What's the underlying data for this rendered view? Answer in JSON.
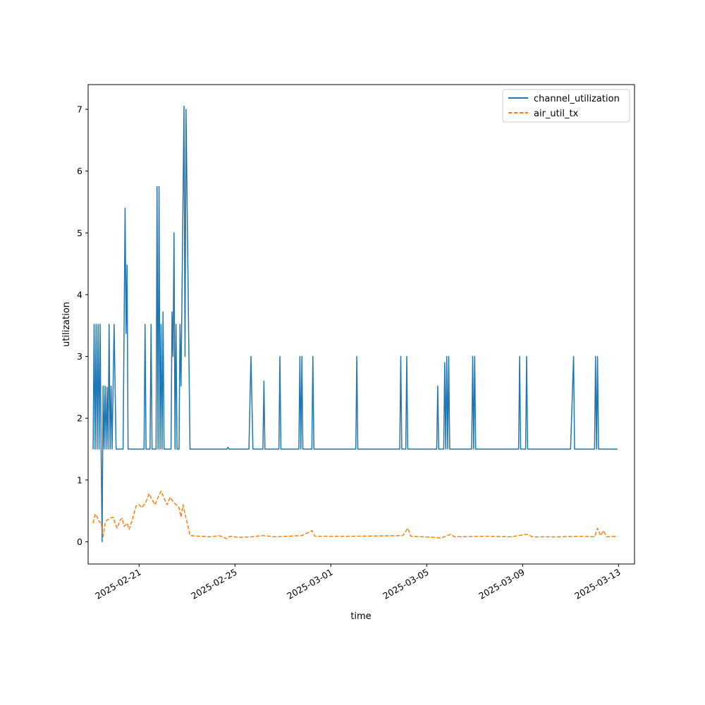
{
  "chart_data": {
    "type": "line",
    "xlabel": "time",
    "ylabel": "utilization",
    "xlim": [
      "2025-02-18T21:00",
      "2025-03-13T16:00"
    ],
    "ylim": [
      -0.36,
      7.4
    ],
    "x_ticks": [
      "2025-02-21",
      "2025-02-25",
      "2025-03-01",
      "2025-03-05",
      "2025-03-09",
      "2025-03-13"
    ],
    "y_ticks": [
      0,
      1,
      2,
      3,
      4,
      5,
      6,
      7
    ],
    "legend": {
      "position": "top-right"
    },
    "series": [
      {
        "name": "channel_utilization",
        "color": "#1f77b4",
        "style": "solid",
        "points": [
          [
            "2025-02-19T02:00",
            1.5
          ],
          [
            "2025-02-19T03:00",
            3.52
          ],
          [
            "2025-02-19T04:00",
            1.5
          ],
          [
            "2025-02-19T05:00",
            3.52
          ],
          [
            "2025-02-19T06:00",
            1.5
          ],
          [
            "2025-02-19T07:00",
            3.52
          ],
          [
            "2025-02-19T08:00",
            1.5
          ],
          [
            "2025-02-19T09:00",
            3.52
          ],
          [
            "2025-02-19T10:00",
            1.5
          ],
          [
            "2025-02-19T11:00",
            0.0
          ],
          [
            "2025-02-19T12:00",
            2.52
          ],
          [
            "2025-02-19T13:00",
            1.5
          ],
          [
            "2025-02-19T14:00",
            2.52
          ],
          [
            "2025-02-19T15:00",
            1.5
          ],
          [
            "2025-02-19T16:00",
            2.5
          ],
          [
            "2025-02-19T17:00",
            1.5
          ],
          [
            "2025-02-19T18:00",
            3.52
          ],
          [
            "2025-02-19T19:00",
            1.5
          ],
          [
            "2025-02-19T20:00",
            2.52
          ],
          [
            "2025-02-19T21:00",
            1.5
          ],
          [
            "2025-02-19T23:00",
            3.52
          ],
          [
            "2025-02-20T01:00",
            1.5
          ],
          [
            "2025-02-20T08:00",
            1.5
          ],
          [
            "2025-02-20T10:00",
            5.4
          ],
          [
            "2025-02-20T11:00",
            3.37
          ],
          [
            "2025-02-20T12:00",
            4.48
          ],
          [
            "2025-02-20T13:00",
            1.5
          ],
          [
            "2025-02-21T05:00",
            1.5
          ],
          [
            "2025-02-21T06:00",
            3.52
          ],
          [
            "2025-02-21T07:00",
            1.5
          ],
          [
            "2025-02-21T11:00",
            1.5
          ],
          [
            "2025-02-21T12:00",
            3.52
          ],
          [
            "2025-02-21T13:00",
            1.5
          ],
          [
            "2025-02-21T17:00",
            1.5
          ],
          [
            "2025-02-21T18:00",
            5.75
          ],
          [
            "2025-02-21T19:00",
            1.5
          ],
          [
            "2025-02-21T20:00",
            5.75
          ],
          [
            "2025-02-21T21:00",
            1.5
          ],
          [
            "2025-02-21T22:00",
            3.52
          ],
          [
            "2025-02-21T23:00",
            1.5
          ],
          [
            "2025-02-22T00:00",
            3.72
          ],
          [
            "2025-02-22T01:00",
            1.5
          ],
          [
            "2025-02-22T08:00",
            1.5
          ],
          [
            "2025-02-22T09:00",
            3.72
          ],
          [
            "2025-02-22T10:00",
            3.0
          ],
          [
            "2025-02-22T11:00",
            5.0
          ],
          [
            "2025-02-22T12:00",
            1.5
          ],
          [
            "2025-02-22T13:00",
            3.52
          ],
          [
            "2025-02-22T14:00",
            1.5
          ],
          [
            "2025-02-22T16:00",
            1.5
          ],
          [
            "2025-02-22T17:00",
            3.52
          ],
          [
            "2025-02-22T18:00",
            2.52
          ],
          [
            "2025-02-22T21:00",
            7.05
          ],
          [
            "2025-02-22T22:00",
            3.0
          ],
          [
            "2025-02-22T23:00",
            7.0
          ],
          [
            "2025-02-23T03:00",
            1.5
          ],
          [
            "2025-02-24T16:00",
            1.5
          ],
          [
            "2025-02-24T17:00",
            1.53
          ],
          [
            "2025-02-24T18:00",
            1.5
          ],
          [
            "2025-02-25T14:00",
            1.5
          ],
          [
            "2025-02-25T16:00",
            3.0
          ],
          [
            "2025-02-25T18:00",
            1.5
          ],
          [
            "2025-02-26T04:00",
            1.5
          ],
          [
            "2025-02-26T05:00",
            2.6
          ],
          [
            "2025-02-26T06:00",
            1.5
          ],
          [
            "2025-02-26T20:00",
            1.5
          ],
          [
            "2025-02-26T21:00",
            3.0
          ],
          [
            "2025-02-26T22:00",
            1.5
          ],
          [
            "2025-02-27T16:00",
            1.5
          ],
          [
            "2025-02-27T17:00",
            3.0
          ],
          [
            "2025-02-27T18:00",
            1.5
          ],
          [
            "2025-02-27T19:00",
            3.0
          ],
          [
            "2025-02-27T20:00",
            1.5
          ],
          [
            "2025-02-28T05:00",
            1.5
          ],
          [
            "2025-02-28T06:00",
            3.0
          ],
          [
            "2025-02-28T07:00",
            1.5
          ],
          [
            "2025-03-02T01:00",
            1.5
          ],
          [
            "2025-03-02T02:00",
            3.0
          ],
          [
            "2025-03-02T03:00",
            1.5
          ],
          [
            "2025-03-03T21:00",
            1.5
          ],
          [
            "2025-03-03T22:00",
            3.0
          ],
          [
            "2025-03-03T23:00",
            1.5
          ],
          [
            "2025-03-04T03:00",
            1.5
          ],
          [
            "2025-03-04T04:00",
            3.0
          ],
          [
            "2025-03-04T05:00",
            1.5
          ],
          [
            "2025-03-05T10:00",
            1.5
          ],
          [
            "2025-03-05T11:00",
            2.52
          ],
          [
            "2025-03-05T12:00",
            1.5
          ],
          [
            "2025-03-05T17:00",
            1.5
          ],
          [
            "2025-03-05T18:00",
            2.9
          ],
          [
            "2025-03-05T19:00",
            1.5
          ],
          [
            "2025-03-05T20:00",
            3.0
          ],
          [
            "2025-03-05T21:00",
            1.5
          ],
          [
            "2025-03-05T22:00",
            3.0
          ],
          [
            "2025-03-05T23:00",
            1.5
          ],
          [
            "2025-03-06T21:00",
            1.5
          ],
          [
            "2025-03-06T22:00",
            3.0
          ],
          [
            "2025-03-06T23:00",
            1.5
          ],
          [
            "2025-03-07T00:00",
            3.0
          ],
          [
            "2025-03-07T01:00",
            1.5
          ],
          [
            "2025-03-08T20:00",
            1.5
          ],
          [
            "2025-03-08T21:00",
            3.0
          ],
          [
            "2025-03-08T22:00",
            1.5
          ],
          [
            "2025-03-09T03:00",
            1.5
          ],
          [
            "2025-03-09T04:00",
            3.0
          ],
          [
            "2025-03-09T05:00",
            1.5
          ],
          [
            "2025-03-11T00:00",
            1.5
          ],
          [
            "2025-03-11T03:00",
            3.0
          ],
          [
            "2025-03-11T04:00",
            1.5
          ],
          [
            "2025-03-12T00:00",
            1.5
          ],
          [
            "2025-03-12T01:00",
            3.0
          ],
          [
            "2025-03-12T02:00",
            1.5
          ],
          [
            "2025-03-12T03:00",
            3.0
          ],
          [
            "2025-03-12T04:00",
            1.5
          ],
          [
            "2025-03-12T23:00",
            1.5
          ]
        ]
      },
      {
        "name": "air_util_tx",
        "color": "#ff7f0e",
        "style": "dashed",
        "points": [
          [
            "2025-02-19T02:00",
            0.3
          ],
          [
            "2025-02-19T04:00",
            0.45
          ],
          [
            "2025-02-19T06:00",
            0.4
          ],
          [
            "2025-02-19T08:00",
            0.33
          ],
          [
            "2025-02-19T10:00",
            0.3
          ],
          [
            "2025-02-19T12:00",
            0.08
          ],
          [
            "2025-02-19T14:00",
            0.3
          ],
          [
            "2025-02-19T16:00",
            0.35
          ],
          [
            "2025-02-19T19:00",
            0.38
          ],
          [
            "2025-02-19T22:00",
            0.4
          ],
          [
            "2025-02-20T00:00",
            0.3
          ],
          [
            "2025-02-20T02:00",
            0.22
          ],
          [
            "2025-02-20T05:00",
            0.35
          ],
          [
            "2025-02-20T07:00",
            0.38
          ],
          [
            "2025-02-20T09:00",
            0.25
          ],
          [
            "2025-02-20T12:00",
            0.3
          ],
          [
            "2025-02-20T14:00",
            0.2
          ],
          [
            "2025-02-20T18:00",
            0.4
          ],
          [
            "2025-02-20T21:00",
            0.58
          ],
          [
            "2025-02-21T00:00",
            0.6
          ],
          [
            "2025-02-21T03:00",
            0.55
          ],
          [
            "2025-02-21T07:00",
            0.65
          ],
          [
            "2025-02-21T10:00",
            0.78
          ],
          [
            "2025-02-21T13:00",
            0.68
          ],
          [
            "2025-02-21T16:00",
            0.6
          ],
          [
            "2025-02-21T19:00",
            0.72
          ],
          [
            "2025-02-21T22:00",
            0.82
          ],
          [
            "2025-02-22T01:00",
            0.7
          ],
          [
            "2025-02-22T04:00",
            0.6
          ],
          [
            "2025-02-22T07:00",
            0.72
          ],
          [
            "2025-02-22T10:00",
            0.65
          ],
          [
            "2025-02-22T13:00",
            0.6
          ],
          [
            "2025-02-22T16:00",
            0.55
          ],
          [
            "2025-02-22T18:00",
            0.4
          ],
          [
            "2025-02-22T20:00",
            0.6
          ],
          [
            "2025-02-22T22:00",
            0.45
          ],
          [
            "2025-02-23T01:00",
            0.25
          ],
          [
            "2025-02-23T03:00",
            0.1
          ],
          [
            "2025-02-23T12:00",
            0.09
          ],
          [
            "2025-02-24T00:00",
            0.08
          ],
          [
            "2025-02-24T08:00",
            0.1
          ],
          [
            "2025-02-24T16:00",
            0.05
          ],
          [
            "2025-02-24T19:00",
            0.09
          ],
          [
            "2025-02-25T04:00",
            0.07
          ],
          [
            "2025-02-25T16:00",
            0.08
          ],
          [
            "2025-02-26T04:00",
            0.1
          ],
          [
            "2025-02-26T16:00",
            0.08
          ],
          [
            "2025-02-27T04:00",
            0.09
          ],
          [
            "2025-02-27T19:00",
            0.1
          ],
          [
            "2025-02-28T05:00",
            0.18
          ],
          [
            "2025-02-28T08:00",
            0.09
          ],
          [
            "2025-03-02T00:00",
            0.09
          ],
          [
            "2025-03-04T00:00",
            0.1
          ],
          [
            "2025-03-04T05:00",
            0.22
          ],
          [
            "2025-03-04T08:00",
            0.09
          ],
          [
            "2025-03-05T08:00",
            0.07
          ],
          [
            "2025-03-05T14:00",
            0.06
          ],
          [
            "2025-03-06T00:00",
            0.12
          ],
          [
            "2025-03-06T04:00",
            0.08
          ],
          [
            "2025-03-07T12:00",
            0.09
          ],
          [
            "2025-03-08T12:00",
            0.08
          ],
          [
            "2025-03-09T04:00",
            0.12
          ],
          [
            "2025-03-09T10:00",
            0.08
          ],
          [
            "2025-03-10T12:00",
            0.08
          ],
          [
            "2025-03-11T12:00",
            0.09
          ],
          [
            "2025-03-12T00:00",
            0.08
          ],
          [
            "2025-03-12T03:00",
            0.22
          ],
          [
            "2025-03-12T06:00",
            0.1
          ],
          [
            "2025-03-12T09:00",
            0.18
          ],
          [
            "2025-03-12T12:00",
            0.08
          ],
          [
            "2025-03-12T23:00",
            0.09
          ]
        ]
      }
    ]
  }
}
